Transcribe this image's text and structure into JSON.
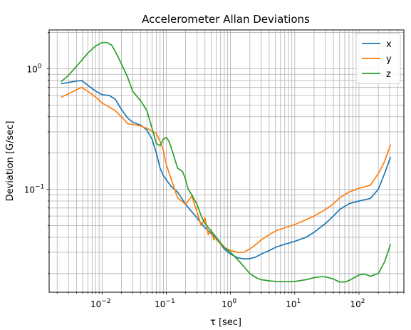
{
  "chart_data": {
    "type": "line",
    "title": "Accelerometer Allan Deviations",
    "xlabel": "τ [sec]",
    "ylabel": "Deviation [G/sec]",
    "xscale": "log",
    "yscale": "log",
    "xlim": [
      0.0015,
      500
    ],
    "ylim": [
      0.014,
      2.1
    ],
    "grid": true,
    "grid_minor": true,
    "legend_position": "top-right",
    "x_ticks": [
      {
        "value": 0.01,
        "base": "10",
        "exp": "−2"
      },
      {
        "value": 0.1,
        "base": "10",
        "exp": "−1"
      },
      {
        "value": 1,
        "base": "10",
        "exp": "0"
      },
      {
        "value": 10,
        "base": "10",
        "exp": "1"
      },
      {
        "value": 100,
        "base": "10",
        "exp": "2"
      }
    ],
    "y_ticks": [
      {
        "value": 0.1,
        "base": "10",
        "exp": "−1"
      },
      {
        "value": 1,
        "base": "10",
        "exp": "0"
      }
    ],
    "series": [
      {
        "name": "x",
        "color": "#1f77b4",
        "x": [
          0.0023,
          0.003,
          0.004,
          0.0048,
          0.006,
          0.008,
          0.01,
          0.013,
          0.016,
          0.02,
          0.025,
          0.03,
          0.04,
          0.05,
          0.06,
          0.07,
          0.08,
          0.09,
          0.1,
          0.12,
          0.15,
          0.2,
          0.25,
          0.3,
          0.35,
          0.4,
          0.5,
          0.6,
          0.7,
          0.8,
          1.0,
          1.3,
          1.6,
          2.0,
          2.5,
          3,
          4,
          5,
          7,
          10,
          15,
          20,
          30,
          40,
          50,
          70,
          100,
          150,
          200,
          250,
          310
        ],
        "y": [
          0.75,
          0.77,
          0.79,
          0.8,
          0.73,
          0.65,
          0.61,
          0.6,
          0.56,
          0.46,
          0.39,
          0.36,
          0.34,
          0.31,
          0.26,
          0.2,
          0.15,
          0.13,
          0.12,
          0.105,
          0.095,
          0.075,
          0.065,
          0.058,
          0.052,
          0.048,
          0.043,
          0.039,
          0.035,
          0.032,
          0.029,
          0.027,
          0.0265,
          0.0265,
          0.0275,
          0.029,
          0.031,
          0.033,
          0.035,
          0.037,
          0.04,
          0.044,
          0.052,
          0.06,
          0.068,
          0.076,
          0.08,
          0.084,
          0.1,
          0.135,
          0.185
        ]
      },
      {
        "name": "y",
        "color": "#ff7f0e",
        "x": [
          0.0023,
          0.003,
          0.004,
          0.0048,
          0.006,
          0.008,
          0.01,
          0.013,
          0.016,
          0.02,
          0.025,
          0.03,
          0.04,
          0.05,
          0.06,
          0.07,
          0.08,
          0.09,
          0.1,
          0.12,
          0.15,
          0.2,
          0.25,
          0.3,
          0.35,
          0.4,
          0.45,
          0.5,
          0.55,
          0.6,
          0.7,
          0.8,
          1.0,
          1.3,
          1.6,
          2.0,
          2.5,
          3,
          4,
          5,
          7,
          10,
          15,
          20,
          30,
          40,
          50,
          70,
          100,
          150,
          200,
          250,
          310
        ],
        "y": [
          0.58,
          0.62,
          0.67,
          0.7,
          0.65,
          0.58,
          0.52,
          0.48,
          0.45,
          0.4,
          0.35,
          0.345,
          0.335,
          0.32,
          0.305,
          0.29,
          0.25,
          0.21,
          0.16,
          0.12,
          0.085,
          0.075,
          0.088,
          0.065,
          0.05,
          0.058,
          0.042,
          0.046,
          0.038,
          0.04,
          0.035,
          0.033,
          0.031,
          0.03,
          0.03,
          0.032,
          0.035,
          0.038,
          0.042,
          0.045,
          0.048,
          0.051,
          0.056,
          0.06,
          0.068,
          0.076,
          0.085,
          0.095,
          0.102,
          0.108,
          0.135,
          0.17,
          0.235
        ]
      },
      {
        "name": "z",
        "color": "#2ca02c",
        "x": [
          0.0023,
          0.003,
          0.004,
          0.005,
          0.006,
          0.008,
          0.01,
          0.012,
          0.014,
          0.016,
          0.02,
          0.025,
          0.03,
          0.04,
          0.05,
          0.06,
          0.07,
          0.08,
          0.09,
          0.1,
          0.11,
          0.12,
          0.15,
          0.18,
          0.2,
          0.22,
          0.25,
          0.3,
          0.35,
          0.4,
          0.5,
          0.6,
          0.7,
          0.8,
          1.0,
          1.3,
          1.6,
          2.0,
          2.5,
          3,
          4,
          5,
          7,
          10,
          15,
          20,
          25,
          30,
          40,
          50,
          60,
          70,
          100,
          120,
          150,
          200,
          250,
          310
        ],
        "y": [
          0.78,
          0.88,
          1.05,
          1.2,
          1.35,
          1.55,
          1.65,
          1.65,
          1.58,
          1.4,
          1.1,
          0.85,
          0.65,
          0.54,
          0.45,
          0.32,
          0.24,
          0.23,
          0.26,
          0.27,
          0.25,
          0.22,
          0.15,
          0.14,
          0.12,
          0.1,
          0.09,
          0.075,
          0.06,
          0.052,
          0.045,
          0.04,
          0.036,
          0.033,
          0.03,
          0.026,
          0.023,
          0.02,
          0.0185,
          0.0178,
          0.0174,
          0.0172,
          0.0171,
          0.0172,
          0.0178,
          0.0185,
          0.0188,
          0.0188,
          0.018,
          0.017,
          0.017,
          0.0175,
          0.0195,
          0.0198,
          0.019,
          0.02,
          0.025,
          0.035
        ]
      }
    ]
  }
}
